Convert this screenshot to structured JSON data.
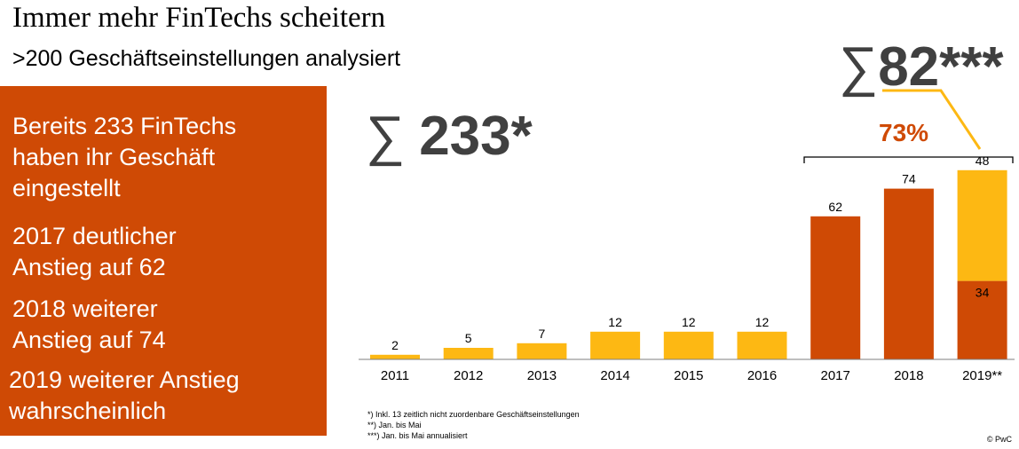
{
  "header": {
    "title": "Immer mehr FinTechs scheitern",
    "subtitle": ">200 Geschäftseinstellungen analysiert"
  },
  "panel": {
    "color": "#cf4a05",
    "points": [
      [
        "Bereits 233 FinTechs",
        "haben ihr Geschäft",
        "eingestellt"
      ],
      [
        "2017 deutlicher",
        "Anstieg auf 62"
      ],
      [
        "2018 weiterer",
        "Anstieg auf 74"
      ],
      [
        "2019 weiterer Anstieg",
        "wahrscheinlich"
      ]
    ]
  },
  "totals": {
    "sigma": "∑",
    "overall": "233*",
    "annualized_2019": "82***",
    "growth_percent": "73%"
  },
  "chart_data": {
    "type": "bar",
    "categories": [
      "2011",
      "2012",
      "2013",
      "2014",
      "2015",
      "2016",
      "2017",
      "2018",
      "2019**"
    ],
    "series": [
      {
        "values": [
          2,
          5,
          7,
          12,
          12,
          12,
          62,
          74,
          34
        ]
      },
      {
        "values": [
          0,
          0,
          0,
          0,
          0,
          0,
          0,
          0,
          48
        ]
      }
    ],
    "bar_colors": [
      "#fdb813",
      "#fdb813",
      "#fdb813",
      "#fdb813",
      "#fdb813",
      "#fdb813",
      "#cf4a05",
      "#cf4a05",
      "#cf4a05"
    ],
    "stack_color": "#fdb813",
    "top_labels": [
      "2",
      "5",
      "7",
      "12",
      "12",
      "12",
      "62",
      "74",
      "48"
    ],
    "inner_labels": [
      "",
      "",
      "",
      "",
      "",
      "",
      "",
      "",
      "34"
    ],
    "ylim": [
      0,
      85
    ],
    "grid": false
  },
  "footnotes": [
    "*) Inkl. 13 zeitlich nicht zuordenbare Geschäftseinstellungen",
    "**) Jan. bis Mai",
    "***) Jan. bis Mai annualisiert"
  ],
  "copyright": "© PwC"
}
